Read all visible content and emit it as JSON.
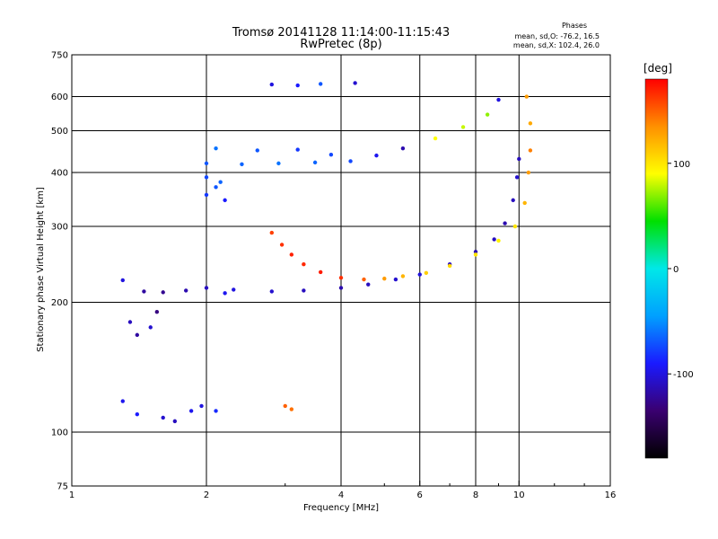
{
  "chart_data": {
    "type": "scatter",
    "title": "Tromsø 20141128 11:14:00-11:15:43",
    "subtitle": "RwPretec (8p)",
    "xlabel": "Frequency [MHz]",
    "ylabel": "Stationary phase Virtual Height [km]",
    "x_scale": "log",
    "y_scale": "log",
    "xlim": [
      1,
      16
    ],
    "ylim": [
      75,
      750
    ],
    "x_ticks": [
      1,
      2,
      4,
      6,
      8,
      10,
      16
    ],
    "y_ticks": [
      75,
      100,
      200,
      300,
      400,
      500,
      600,
      750
    ],
    "grid": true,
    "phase_box": {
      "title": "Phases",
      "line1": "mean, sd,O: -76.2, 16.5",
      "line2": "mean, sd,X: 102.4, 26.0"
    },
    "colorbar": {
      "label": "[deg]",
      "range": [
        -180,
        180
      ],
      "ticks": [
        100,
        0,
        -100
      ],
      "colormap": [
        "#000000",
        "#3a0070",
        "#1a1aff",
        "#00a0ff",
        "#00e8e8",
        "#00e000",
        "#ffff00",
        "#ff9000",
        "#ff0000"
      ]
    },
    "series": [
      {
        "values": [
          [
            1.45,
            212,
            -120
          ],
          [
            1.6,
            211,
            -125
          ],
          [
            1.8,
            213,
            -115
          ],
          [
            2.0,
            216,
            -110
          ],
          [
            2.3,
            214,
            -100
          ],
          [
            2.8,
            212,
            -105
          ],
          [
            3.3,
            213,
            -110
          ],
          [
            4.0,
            216,
            -115
          ],
          [
            4.6,
            220,
            -110
          ],
          [
            5.3,
            226,
            -105
          ],
          [
            6.0,
            232,
            -100
          ],
          [
            7.0,
            245,
            -110
          ],
          [
            8.0,
            262,
            -115
          ],
          [
            8.8,
            280,
            -110
          ],
          [
            9.3,
            305,
            -115
          ],
          [
            9.7,
            345,
            -110
          ],
          [
            9.9,
            390,
            -105
          ],
          [
            10.0,
            430,
            -110
          ],
          [
            1.3,
            225,
            -100
          ],
          [
            2.2,
            210,
            -95
          ]
        ]
      },
      {
        "values": [
          [
            2.0,
            420,
            -70
          ],
          [
            2.4,
            418,
            -65
          ],
          [
            2.9,
            420,
            -60
          ],
          [
            3.5,
            422,
            -65
          ],
          [
            4.2,
            425,
            -75
          ],
          [
            4.8,
            438,
            -95
          ],
          [
            5.5,
            455,
            -115
          ],
          [
            6.5,
            480,
            90
          ],
          [
            7.5,
            510,
            80
          ],
          [
            8.5,
            545,
            70
          ],
          [
            9.0,
            590,
            -100
          ],
          [
            2.1,
            455,
            -60
          ],
          [
            2.6,
            450,
            -70
          ],
          [
            3.2,
            452,
            -80
          ],
          [
            3.8,
            440,
            -75
          ]
        ]
      },
      {
        "values": [
          [
            2.0,
            355,
            -80
          ],
          [
            2.1,
            370,
            -70
          ],
          [
            2.2,
            345,
            -90
          ],
          [
            2.0,
            390,
            -75
          ],
          [
            2.15,
            380,
            -65
          ]
        ]
      },
      {
        "values": [
          [
            2.8,
            290,
            160
          ],
          [
            2.95,
            272,
            165
          ],
          [
            3.1,
            258,
            170
          ],
          [
            3.3,
            245,
            168
          ],
          [
            3.6,
            235,
            172
          ],
          [
            4.0,
            228,
            165
          ],
          [
            4.5,
            226,
            150
          ],
          [
            5.0,
            227,
            130
          ],
          [
            5.5,
            230,
            120
          ],
          [
            6.2,
            234,
            110
          ],
          [
            7.0,
            243,
            105
          ],
          [
            8.0,
            258,
            100
          ],
          [
            9.0,
            278,
            95
          ],
          [
            9.8,
            300,
            100
          ],
          [
            10.3,
            340,
            120
          ],
          [
            10.5,
            400,
            130
          ],
          [
            10.6,
            450,
            140
          ],
          [
            10.6,
            520,
            125
          ],
          [
            10.4,
            600,
            130
          ]
        ]
      },
      {
        "values": [
          [
            1.35,
            180,
            -110
          ],
          [
            1.4,
            168,
            -120
          ],
          [
            1.5,
            175,
            -105
          ],
          [
            1.55,
            190,
            -130
          ],
          [
            1.6,
            108,
            -105
          ],
          [
            1.7,
            106,
            -110
          ],
          [
            1.85,
            112,
            -95
          ],
          [
            1.95,
            115,
            -100
          ],
          [
            2.1,
            112,
            -85
          ],
          [
            1.4,
            110,
            -90
          ],
          [
            1.3,
            118,
            -95
          ]
        ]
      },
      {
        "values": [
          [
            2.8,
            640,
            -100
          ],
          [
            3.2,
            637,
            -90
          ],
          [
            3.6,
            642,
            -70
          ],
          [
            4.3,
            645,
            -105
          ],
          [
            3.0,
            115,
            150
          ],
          [
            3.1,
            113,
            145
          ]
        ]
      }
    ]
  }
}
